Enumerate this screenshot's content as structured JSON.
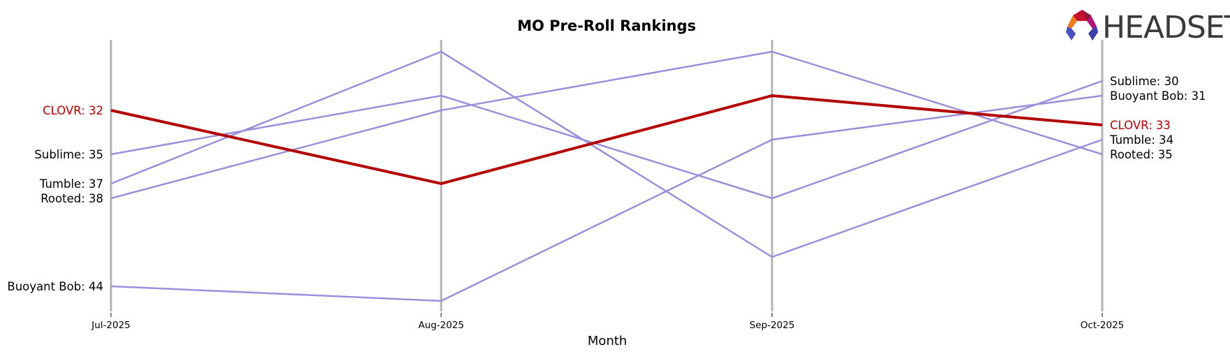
{
  "chart_data": {
    "type": "line",
    "subtype": "bump",
    "title": "MO Pre-Roll Rankings",
    "xlabel": "Month",
    "ylabel": "",
    "categories": [
      "Jul-2025",
      "Aug-2025",
      "Sep-2025",
      "Oct-2025"
    ],
    "y_inverted": true,
    "ylim": [
      27,
      46
    ],
    "grid": false,
    "legend": "none (series labeled at start and end)",
    "series": [
      {
        "name": "CLOVR",
        "values": [
          32,
          37,
          31,
          33
        ],
        "highlight": true,
        "color": "#b30000"
      },
      {
        "name": "Sublime",
        "values": [
          35,
          31,
          38,
          30
        ],
        "highlight": false,
        "color": "#9b8fdb"
      },
      {
        "name": "Tumble",
        "values": [
          37,
          28,
          42,
          34
        ],
        "highlight": false,
        "color": "#9b8fdb"
      },
      {
        "name": "Rooted",
        "values": [
          38,
          32,
          28,
          35
        ],
        "highlight": false,
        "color": "#9b8fdb"
      },
      {
        "name": "Buoyant Bob",
        "values": [
          44,
          45,
          34,
          31
        ],
        "highlight": false,
        "color": "#9b8fdb"
      }
    ]
  },
  "brand": {
    "logo_text": "HEADSET"
  },
  "colors": {
    "highlight": "#b30000",
    "other": "#9b8fdb",
    "axis": "#b3b3b3",
    "text": "#000000"
  }
}
